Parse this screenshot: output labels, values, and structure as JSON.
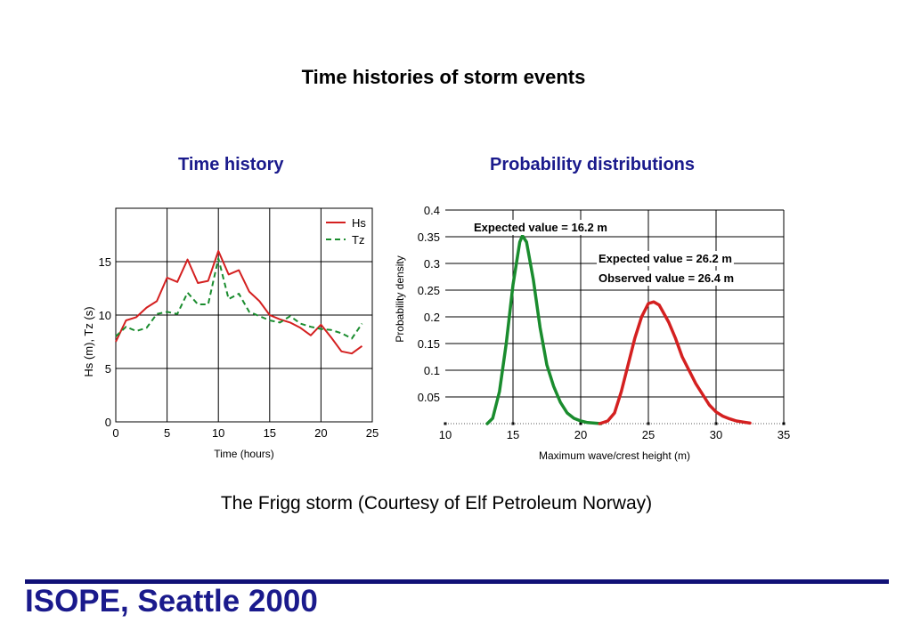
{
  "slide": {
    "title": "Time histories of storm events",
    "caption": "The Frigg storm (Courtesy of Elf Petroleum Norway)",
    "footer": "ISOPE, Seattle 2000"
  },
  "colors": {
    "accent": "#1a1a8c",
    "hs": "#d42020",
    "tz": "#1a8c2e",
    "dist_low": "#1a8c2e",
    "dist_high": "#d42020"
  },
  "chart_data": [
    {
      "type": "line",
      "title": "Time history",
      "xlabel": "Time (hours)",
      "ylabel": "Hs (m), Tz (s)",
      "xlim": [
        0,
        25
      ],
      "ylim": [
        0,
        20
      ],
      "xticks": [
        0,
        5,
        10,
        15,
        20,
        25
      ],
      "yticks": [
        0,
        5,
        10,
        15
      ],
      "grid": true,
      "legend": "top-right",
      "series": [
        {
          "name": "Hs",
          "style": "solid",
          "x": [
            0,
            1,
            2,
            3,
            4,
            5,
            6,
            7,
            8,
            9,
            10,
            11,
            12,
            13,
            14,
            15,
            16,
            17,
            18,
            19,
            20,
            21,
            22,
            23,
            24
          ],
          "y": [
            7.5,
            9.5,
            9.8,
            10.7,
            11.3,
            13.5,
            13.1,
            15.2,
            13.0,
            13.2,
            16.0,
            13.8,
            14.2,
            12.2,
            11.3,
            10.0,
            9.6,
            9.3,
            8.8,
            8.1,
            9.1,
            7.9,
            6.6,
            6.4,
            7.1
          ]
        },
        {
          "name": "Tz",
          "style": "dashed",
          "x": [
            0,
            1,
            2,
            3,
            4,
            5,
            6,
            7,
            8,
            9,
            10,
            11,
            12,
            13,
            14,
            15,
            16,
            17,
            18,
            19,
            20,
            21,
            22,
            23,
            24
          ],
          "y": [
            8.0,
            8.9,
            8.5,
            8.8,
            10.1,
            10.3,
            10.1,
            12.1,
            11.0,
            11.0,
            15.3,
            11.5,
            12.0,
            10.3,
            9.9,
            9.5,
            9.3,
            9.9,
            9.2,
            8.9,
            8.7,
            8.6,
            8.3,
            7.8,
            9.2
          ]
        }
      ]
    },
    {
      "type": "line",
      "title": "Probability distributions",
      "xlabel": "Maximum wave/crest height (m)",
      "ylabel": "Probability density",
      "xlim": [
        10,
        35
      ],
      "ylim": [
        0,
        0.4
      ],
      "xticks": [
        10,
        15,
        20,
        25,
        30,
        35
      ],
      "yticks": [
        0.05,
        0.1,
        0.15,
        0.2,
        0.25,
        0.3,
        0.35,
        0.4
      ],
      "grid": true,
      "annotations": [
        "Expected value = 16.2 m",
        "Expected value = 26.2 m",
        "Observed value = 26.4 m"
      ],
      "series": [
        {
          "x": [
            13.1,
            13.5,
            14.0,
            14.5,
            15.0,
            15.5,
            15.7,
            16.0,
            16.5,
            17.0,
            17.5,
            18.0,
            18.5,
            19.0,
            19.5,
            20.0,
            20.5,
            21.0,
            21.5
          ],
          "y": [
            0.0,
            0.01,
            0.06,
            0.15,
            0.26,
            0.34,
            0.352,
            0.34,
            0.27,
            0.18,
            0.11,
            0.07,
            0.04,
            0.02,
            0.01,
            0.005,
            0.002,
            0.001,
            0.0
          ]
        },
        {
          "x": [
            21.4,
            22.0,
            22.5,
            23.0,
            23.5,
            24.0,
            24.5,
            25.0,
            25.4,
            25.8,
            26.5,
            27.0,
            27.5,
            28.0,
            28.5,
            29.0,
            29.5,
            30.0,
            30.5,
            31.0,
            31.5,
            32.0,
            32.5
          ],
          "y": [
            0.0,
            0.005,
            0.02,
            0.06,
            0.11,
            0.16,
            0.2,
            0.225,
            0.228,
            0.222,
            0.19,
            0.16,
            0.125,
            0.1,
            0.075,
            0.055,
            0.035,
            0.022,
            0.014,
            0.009,
            0.005,
            0.003,
            0.001
          ]
        }
      ]
    }
  ]
}
